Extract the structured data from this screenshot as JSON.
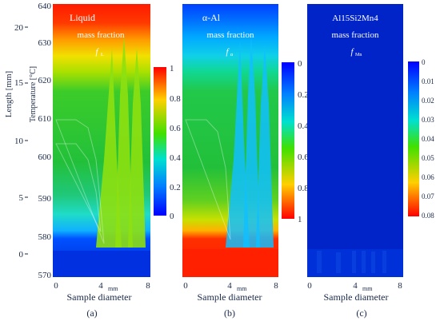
{
  "chart_data": [
    {
      "type": "heatmap",
      "panel_label": "(a)",
      "title_lines": [
        "Liquid",
        "mass fraction",
        "f",
        "L"
      ],
      "xlabel": "Sample diameter",
      "x_ticks": [
        "0",
        "4",
        "mm",
        "8"
      ],
      "y_left_label": "Length [mm]",
      "y_left_ticks": [
        "0",
        "5",
        "10",
        "15",
        "20"
      ],
      "y_right_label": "Temperature [°C]",
      "y_right_ticks": [
        "570",
        "580",
        "590",
        "600",
        "610",
        "620",
        "630",
        "640"
      ],
      "y_right_range": [
        570,
        640
      ],
      "colorbar_ticks": [
        "1",
        "0.8",
        "0.6",
        "0.4",
        "0.2",
        "0"
      ],
      "colorbar_range": [
        0,
        1
      ],
      "colorbar_orientation": "max at top (red)",
      "colormap": "jet"
    },
    {
      "type": "heatmap",
      "panel_label": "(b)",
      "title_lines": [
        "α-Al",
        "mass fraction",
        "f",
        "α"
      ],
      "xlabel": "Sample diameter",
      "x_ticks": [
        "0",
        "4",
        "mm",
        "8"
      ],
      "colorbar_ticks": [
        "0",
        "0.2",
        "0.4",
        "0.6",
        "0.8",
        "1"
      ],
      "colorbar_range": [
        0,
        1
      ],
      "colorbar_orientation": "min at top (blue)",
      "colormap": "jet"
    },
    {
      "type": "heatmap",
      "panel_label": "(c)",
      "title_lines": [
        "Al15Si2Mn4",
        "mass fraction",
        "f",
        "Mn"
      ],
      "xlabel": "Sample diameter",
      "x_ticks": [
        "0",
        "4",
        "mm",
        "8"
      ],
      "colorbar_ticks": [
        "0",
        "0.01",
        "0.02",
        "0.03",
        "0.04",
        "0.05",
        "0.06",
        "0.07",
        "0.08"
      ],
      "colorbar_range": [
        0,
        0.08
      ],
      "colorbar_orientation": "min at top (blue)",
      "colormap": "jet"
    }
  ]
}
